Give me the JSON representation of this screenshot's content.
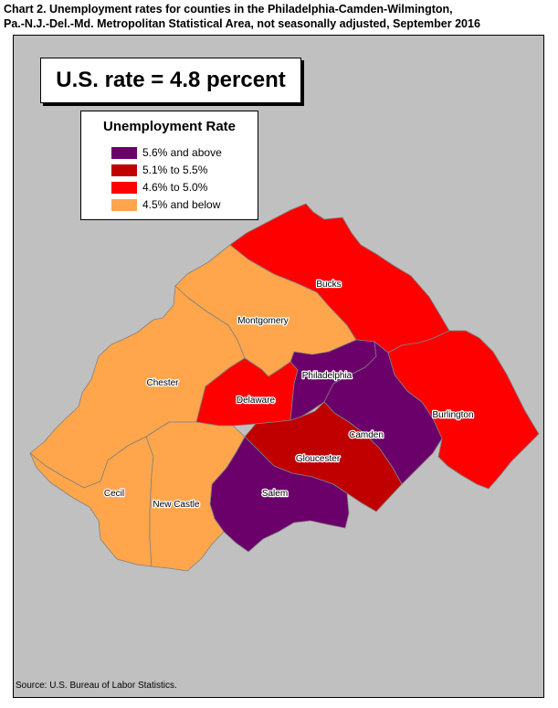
{
  "title_line1": "Chart 2. Unemployment rates for counties in the Philadelphia-Camden-Wilmington,",
  "title_line2": "Pa.-N.J.-Del.-Md. Metropolitan Statistical Area, not seasonally adjusted, September 2016",
  "us_rate": "U.S. rate = 4.8 percent",
  "legend": {
    "title": "Unemployment Rate",
    "items": [
      {
        "label": "5.6% and above",
        "color": "#6b006b"
      },
      {
        "label": "5.1% to 5.5%",
        "color": "#c00000"
      },
      {
        "label": "4.6% to 5.0%",
        "color": "#ff0000"
      },
      {
        "label": "4.5% and below",
        "color": "#ffa64c"
      }
    ]
  },
  "counties": [
    {
      "name": "Bucks",
      "class": "4.6% to 5.0%"
    },
    {
      "name": "Montgomery",
      "class": "4.5% and below"
    },
    {
      "name": "Chester",
      "class": "4.5% and below"
    },
    {
      "name": "Delaware",
      "class": "4.6% to 5.0%"
    },
    {
      "name": "Philadelphia",
      "class": "5.6% and above"
    },
    {
      "name": "Camden",
      "class": "5.6% and above"
    },
    {
      "name": "Burlington",
      "class": "4.6% to 5.0%"
    },
    {
      "name": "Gloucester",
      "class": "5.1% to 5.5%"
    },
    {
      "name": "Salem",
      "class": "5.6% and above"
    },
    {
      "name": "Cecil",
      "class": "4.5% and below"
    },
    {
      "name": "New Castle",
      "class": "4.5% and below"
    }
  ],
  "colors": {
    "background": "#c0c0c0",
    "border": "#808080"
  },
  "source": "Source: U.S. Bureau of Labor Statistics."
}
